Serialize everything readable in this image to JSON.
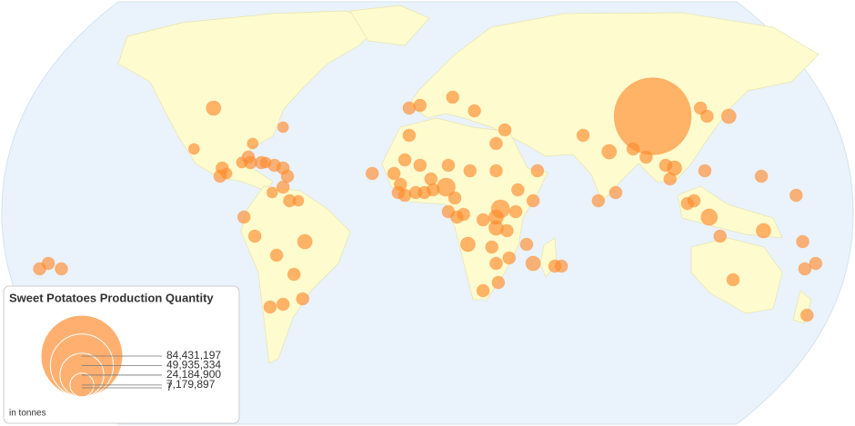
{
  "title": "Sweet Potatoes Production Quantity",
  "unit": "in tonnes",
  "legend": {
    "values": [
      {
        "value": 84431197,
        "label": "84,431,197"
      },
      {
        "value": 49935334,
        "label": "49,935,334"
      },
      {
        "value": 24184900,
        "label": "24,184,900"
      },
      {
        "value": 7179897,
        "label": "7,179,897"
      },
      7
    ]
  },
  "bubbles": {
    "lon": [
      -98,
      -107,
      -80,
      -82,
      -85,
      -94,
      -95,
      -92,
      -81,
      -76,
      -74,
      -70,
      -66,
      -64,
      -66,
      -66,
      -63,
      -59,
      -71,
      -84,
      -79,
      -56,
      -69,
      -61,
      -72,
      -66,
      -57,
      -178,
      -174,
      -168,
      -8,
      -3,
      12,
      22,
      -8,
      -10,
      -25,
      -15,
      -13,
      -12,
      -10,
      -5,
      -3,
      -1,
      2,
      3,
      9,
      10,
      20,
      32,
      36,
      32,
      51,
      42,
      13,
      10,
      14,
      17,
      26,
      32,
      34,
      32,
      37,
      41,
      49,
      19,
      30,
      46,
      32,
      38,
      49,
      59,
      62,
      26,
      33,
      72,
      84,
      95,
      101,
      104,
      126,
      129,
      139,
      110,
      114,
      112,
      120,
      123,
      130,
      128,
      135,
      154,
      155,
      79,
      87,
      170,
      173,
      174,
      179,
      141,
      175
    ],
    "lat": [
      38,
      23,
      25,
      20,
      18,
      16,
      13,
      14,
      18,
      18,
      18,
      17,
      16,
      13,
      9,
      31,
      4,
      4,
      7,
      -2,
      -9,
      -11,
      -16,
      -23,
      -35,
      -34,
      -32,
      -21,
      -19,
      -21,
      38,
      39,
      42,
      37,
      28,
      19,
      14,
      14,
      7,
      10,
      6,
      7,
      17,
      7,
      12,
      8,
      9,
      17,
      15,
      25,
      30,
      15,
      15,
      8,
      5,
      0,
      -2,
      -1,
      -3,
      -2,
      1,
      -6,
      -7,
      0,
      4,
      -12,
      -13,
      -12,
      -19,
      -17,
      -19,
      -20,
      -20,
      -29,
      -26,
      28,
      22,
      23,
      20,
      35,
      38,
      35,
      35,
      17,
      16,
      12,
      3,
      4,
      -2,
      15,
      -9,
      13,
      -7,
      4,
      7,
      6,
      -11,
      -21,
      -19,
      -25,
      -38
    ],
    "values": [
      2700000,
      1500000,
      1500000,
      2000000,
      1500000,
      2000000,
      2000000,
      1500000,
      2000000,
      2000000,
      1500000,
      2000000,
      2000000,
      2000000,
      2000000,
      1500000,
      2000000,
      1500000,
      1500000,
      2000000,
      2000000,
      2700000,
      2000000,
      2000000,
      2000000,
      2000000,
      2000000,
      2000000,
      2000000,
      2000000,
      2000000,
      2000000,
      2000000,
      2000000,
      2000000,
      2000000,
      2000000,
      2000000,
      2000000,
      2000000,
      2000000,
      2000000,
      2000000,
      2000000,
      2000000,
      2000000,
      4200000,
      2000000,
      2000000,
      2000000,
      2000000,
      2000000,
      2000000,
      2000000,
      2000000,
      2000000,
      2000000,
      2000000,
      2000000,
      2700000,
      4200000,
      2700000,
      2000000,
      2000000,
      2000000,
      2700000,
      2000000,
      2000000,
      2000000,
      2000000,
      2700000,
      2000000,
      2000000,
      2000000,
      2000000,
      2000000,
      2700000,
      2000000,
      2000000,
      75000000,
      2000000,
      2000000,
      2700000,
      2000000,
      2700000,
      2000000,
      2000000,
      2000000,
      3400000,
      2000000,
      2000000,
      2000000,
      2700000,
      2000000,
      2000000,
      2000000,
      2000000,
      2000000,
      2000000,
      2000000,
      2000000
    ]
  }
}
